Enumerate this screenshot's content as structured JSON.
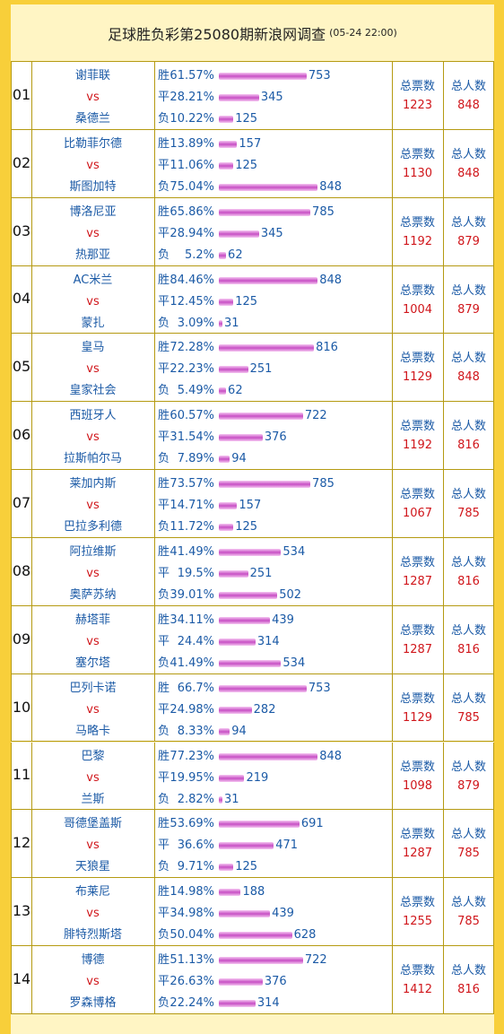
{
  "header": {
    "title": "足球胜负彩第25080期新浪网调查",
    "time": "(05-24 22:00)"
  },
  "matches": [
    {
      "no": "01",
      "home": "谢菲联",
      "vs": "vs",
      "away": "桑德兰",
      "options": [
        {
          "label": "胜",
          "percent": "61.57%",
          "count": 753
        },
        {
          "label": "平",
          "percent": "28.21%",
          "count": 345
        },
        {
          "label": "负",
          "percent": "10.22%",
          "count": 125
        }
      ],
      "total_votes_label": "总票数",
      "total_votes": 1223,
      "total_people_label": "总人数",
      "total_people": 848
    },
    {
      "no": "02",
      "home": "比勒菲尔德",
      "vs": "vs",
      "away": "斯图加特",
      "options": [
        {
          "label": "胜",
          "percent": "13.89%",
          "count": 157
        },
        {
          "label": "平",
          "percent": "11.06%",
          "count": 125
        },
        {
          "label": "负",
          "percent": "75.04%",
          "count": 848
        }
      ],
      "total_votes_label": "总票数",
      "total_votes": 1130,
      "total_people_label": "总人数",
      "total_people": 848
    },
    {
      "no": "03",
      "home": "博洛尼亚",
      "vs": "vs",
      "away": "热那亚",
      "options": [
        {
          "label": "胜",
          "percent": "65.86%",
          "count": 785
        },
        {
          "label": "平",
          "percent": "28.94%",
          "count": 345
        },
        {
          "label": "负",
          "percent": "5.2%",
          "count": 62
        }
      ],
      "total_votes_label": "总票数",
      "total_votes": 1192,
      "total_people_label": "总人数",
      "total_people": 879
    },
    {
      "no": "04",
      "home": "AC米兰",
      "vs": "vs",
      "away": "蒙扎",
      "options": [
        {
          "label": "胜",
          "percent": "84.46%",
          "count": 848
        },
        {
          "label": "平",
          "percent": "12.45%",
          "count": 125
        },
        {
          "label": "负",
          "percent": "3.09%",
          "count": 31
        }
      ],
      "total_votes_label": "总票数",
      "total_votes": 1004,
      "total_people_label": "总人数",
      "total_people": 879
    },
    {
      "no": "05",
      "home": "皇马",
      "vs": "vs",
      "away": "皇家社会",
      "options": [
        {
          "label": "胜",
          "percent": "72.28%",
          "count": 816
        },
        {
          "label": "平",
          "percent": "22.23%",
          "count": 251
        },
        {
          "label": "负",
          "percent": "5.49%",
          "count": 62
        }
      ],
      "total_votes_label": "总票数",
      "total_votes": 1129,
      "total_people_label": "总人数",
      "total_people": 848
    },
    {
      "no": "06",
      "home": "西班牙人",
      "vs": "vs",
      "away": "拉斯帕尔马",
      "options": [
        {
          "label": "胜",
          "percent": "60.57%",
          "count": 722
        },
        {
          "label": "平",
          "percent": "31.54%",
          "count": 376
        },
        {
          "label": "负",
          "percent": "7.89%",
          "count": 94
        }
      ],
      "total_votes_label": "总票数",
      "total_votes": 1192,
      "total_people_label": "总人数",
      "total_people": 816
    },
    {
      "no": "07",
      "home": "莱加内斯",
      "vs": "vs",
      "away": "巴拉多利德",
      "options": [
        {
          "label": "胜",
          "percent": "73.57%",
          "count": 785
        },
        {
          "label": "平",
          "percent": "14.71%",
          "count": 157
        },
        {
          "label": "负",
          "percent": "11.72%",
          "count": 125
        }
      ],
      "total_votes_label": "总票数",
      "total_votes": 1067,
      "total_people_label": "总人数",
      "total_people": 785
    },
    {
      "no": "08",
      "home": "阿拉维斯",
      "vs": "vs",
      "away": "奥萨苏纳",
      "options": [
        {
          "label": "胜",
          "percent": "41.49%",
          "count": 534
        },
        {
          "label": "平",
          "percent": "19.5%",
          "count": 251
        },
        {
          "label": "负",
          "percent": "39.01%",
          "count": 502
        }
      ],
      "total_votes_label": "总票数",
      "total_votes": 1287,
      "total_people_label": "总人数",
      "total_people": 816
    },
    {
      "no": "09",
      "home": "赫塔菲",
      "vs": "vs",
      "away": "塞尔塔",
      "options": [
        {
          "label": "胜",
          "percent": "34.11%",
          "count": 439
        },
        {
          "label": "平",
          "percent": "24.4%",
          "count": 314
        },
        {
          "label": "负",
          "percent": "41.49%",
          "count": 534
        }
      ],
      "total_votes_label": "总票数",
      "total_votes": 1287,
      "total_people_label": "总人数",
      "total_people": 816
    },
    {
      "no": "10",
      "home": "巴列卡诺",
      "vs": "vs",
      "away": "马略卡",
      "options": [
        {
          "label": "胜",
          "percent": "66.7%",
          "count": 753
        },
        {
          "label": "平",
          "percent": "24.98%",
          "count": 282
        },
        {
          "label": "负",
          "percent": "8.33%",
          "count": 94
        }
      ],
      "total_votes_label": "总票数",
      "total_votes": 1129,
      "total_people_label": "总人数",
      "total_people": 785
    },
    {
      "no": "11",
      "home": "巴黎",
      "vs": "vs",
      "away": "兰斯",
      "options": [
        {
          "label": "胜",
          "percent": "77.23%",
          "count": 848
        },
        {
          "label": "平",
          "percent": "19.95%",
          "count": 219
        },
        {
          "label": "负",
          "percent": "2.82%",
          "count": 31
        }
      ],
      "total_votes_label": "总票数",
      "total_votes": 1098,
      "total_people_label": "总人数",
      "total_people": 879
    },
    {
      "no": "12",
      "home": "哥德堡盖斯",
      "vs": "vs",
      "away": "天狼星",
      "options": [
        {
          "label": "胜",
          "percent": "53.69%",
          "count": 691
        },
        {
          "label": "平",
          "percent": "36.6%",
          "count": 471
        },
        {
          "label": "负",
          "percent": "9.71%",
          "count": 125
        }
      ],
      "total_votes_label": "总票数",
      "total_votes": 1287,
      "total_people_label": "总人数",
      "total_people": 785
    },
    {
      "no": "13",
      "home": "布莱尼",
      "vs": "vs",
      "away": "腓特烈斯塔",
      "options": [
        {
          "label": "胜",
          "percent": "14.98%",
          "count": 188
        },
        {
          "label": "平",
          "percent": "34.98%",
          "count": 439
        },
        {
          "label": "负",
          "percent": "50.04%",
          "count": 628
        }
      ],
      "total_votes_label": "总票数",
      "total_votes": 1255,
      "total_people_label": "总人数",
      "total_people": 785
    },
    {
      "no": "14",
      "home": "博德",
      "vs": "vs",
      "away": "罗森博格",
      "options": [
        {
          "label": "胜",
          "percent": "51.13%",
          "count": 722
        },
        {
          "label": "平",
          "percent": "26.63%",
          "count": 376
        },
        {
          "label": "负",
          "percent": "22.24%",
          "count": 314
        }
      ],
      "total_votes_label": "总票数",
      "total_votes": 1412,
      "total_people_label": "总人数",
      "total_people": 816
    }
  ]
}
